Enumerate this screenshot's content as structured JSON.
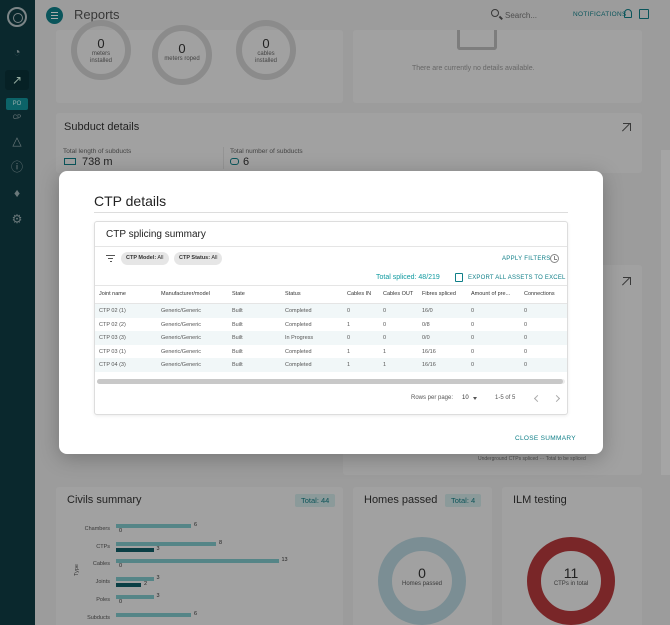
{
  "header": {
    "title": "Reports",
    "search_placeholder": "Search...",
    "notifications_label": "NOTIFICATIONS"
  },
  "sidebar": {
    "items": [
      {
        "label": "PO"
      },
      {
        "label": "CP"
      }
    ]
  },
  "background": {
    "meters": [
      {
        "value": "0",
        "label_line1": "meters",
        "label_line2": "installed"
      },
      {
        "value": "0",
        "label_line1": "meters roped",
        "label_line2": ""
      },
      {
        "value": "0",
        "label_line1": "cables",
        "label_line2": "installed"
      }
    ],
    "no_details_text": "There are currently no details available.",
    "subduct": {
      "title": "Subduct details",
      "length_label": "Total length of subducts",
      "length_value": "738 m",
      "count_label": "Total number of subducts",
      "count_value": "6"
    },
    "legend_text": "Underground CTPs spliced  ···  Total to be spliced",
    "civils": {
      "title": "Civils summary",
      "total": "Total: 44",
      "axis_label": "Type",
      "bars": [
        {
          "label": "Chambers",
          "a": 6,
          "b": 0
        },
        {
          "label": "CTPs",
          "a": 8,
          "b": 3
        },
        {
          "label": "Cables",
          "a": 13,
          "b": 0
        },
        {
          "label": "Joints",
          "a": 3,
          "b": 2
        },
        {
          "label": "Poles",
          "a": 3,
          "b": 0
        },
        {
          "label": "Subducts",
          "a": 6,
          "b": null
        }
      ]
    },
    "homes": {
      "title": "Homes passed",
      "total": "Total: 4",
      "value": "0",
      "label": "Homes passed"
    },
    "ilm": {
      "title": "ILM testing",
      "value": "11",
      "label": "CTPs in total"
    },
    "colors": {
      "bar_a": "#7fc6c9",
      "bar_b": "#0f5d66",
      "teal": "#0f7f88",
      "ilm_red": "#b53a3c"
    }
  },
  "modal": {
    "title": "CTP details",
    "card_title": "CTP splicing summary",
    "filters": [
      {
        "key": "CTP Model:",
        "value": "All"
      },
      {
        "key": "CTP Status:",
        "value": "All"
      }
    ],
    "apply_filters": "APPLY FILTERS",
    "total_spliced": "Total spliced: 48/219",
    "export_label": "EXPORT ALL ASSETS TO EXCEL",
    "columns": [
      "Joint name",
      "Manufacturer/model",
      "State",
      "Status",
      "Cables IN",
      "Cables OUT",
      "Fibres spliced",
      "Amount of pre...",
      "Connections"
    ],
    "rows": [
      [
        "CTP 02 (1)",
        "Generic/Generic",
        "Built",
        "Completed",
        "0",
        "0",
        "16/0",
        "0",
        "0"
      ],
      [
        "CTP 02 (2)",
        "Generic/Generic",
        "Built",
        "Completed",
        "1",
        "0",
        "0/8",
        "0",
        "0"
      ],
      [
        "CTP 03 (3)",
        "Generic/Generic",
        "Built",
        "In Progress",
        "0",
        "0",
        "0/0",
        "0",
        "0"
      ],
      [
        "CTP 03 (1)",
        "Generic/Generic",
        "Built",
        "Completed",
        "1",
        "1",
        "16/16",
        "0",
        "0"
      ],
      [
        "CTP 04 (3)",
        "Generic/Generic",
        "Built",
        "Completed",
        "1",
        "1",
        "16/16",
        "0",
        "0"
      ]
    ],
    "pagination": {
      "rows_per_page_label": "Rows per page:",
      "rows_per_page_value": "10",
      "range": "1-5 of 5"
    },
    "close_label": "CLOSE SUMMARY"
  }
}
